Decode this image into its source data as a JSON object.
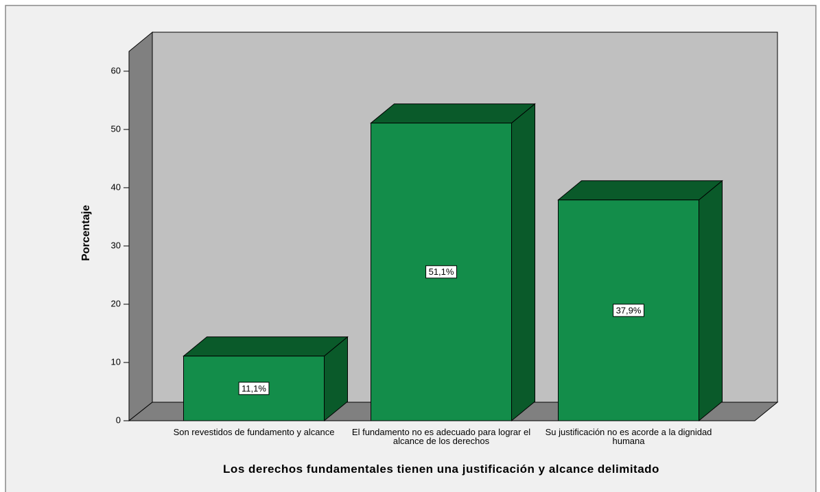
{
  "chart_data": {
    "type": "bar3d",
    "x_label": "Los derechos fundamentales tienen una justificación y alcance delimitado",
    "y_label": "Porcentaje",
    "categories": [
      "Son revestidos de fundamento y alcance",
      "El fundamento no es adecuado para lograr el alcance de los derechos",
      "Su justificación no es acorde a la dignidad humana"
    ],
    "values": [
      11.1,
      51.1,
      37.9
    ],
    "value_labels": [
      "11,1%",
      "51,1%",
      "37,9%"
    ],
    "color": "#138d4a",
    "ylim": [
      0,
      63.4
    ],
    "yticks": [
      0,
      10,
      20,
      30,
      40,
      50,
      60
    ],
    "grid": false
  }
}
